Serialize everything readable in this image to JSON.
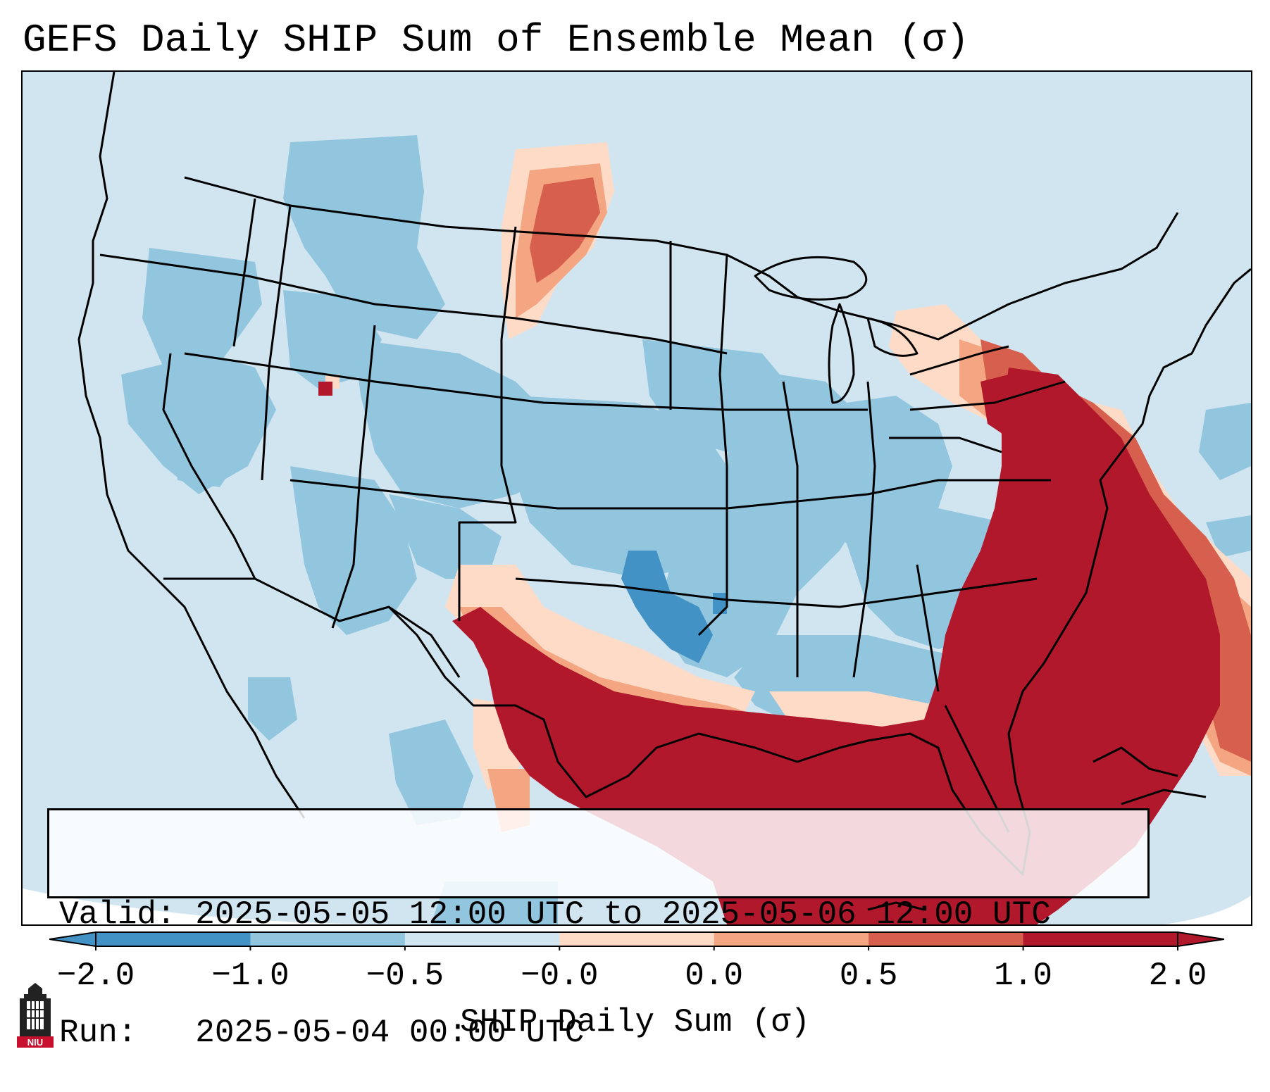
{
  "title": "GEFS Daily SHIP Sum of Ensemble Mean (σ)",
  "info": {
    "valid_line": "Valid: 2025-05-05 12:00 UTC to 2025-05-06 12:00 UTC",
    "run_line": "Run:   2025-05-04 00:00 UTC"
  },
  "colorbar": {
    "label": "SHIP Daily Sum (σ)",
    "ticks": [
      "−2.0",
      "−1.0",
      "−0.5",
      "−0.0",
      "0.0",
      "0.5",
      "1.0",
      "2.0"
    ],
    "colors": [
      "#4292c6",
      "#92c5de",
      "#d1e5f0",
      "#f7f7f7",
      "#fddbc7",
      "#f4a582",
      "#d6604d",
      "#b2182b"
    ],
    "extend": "both"
  },
  "logo": {
    "text": "NIU",
    "icon": "university-tower-icon"
  }
}
